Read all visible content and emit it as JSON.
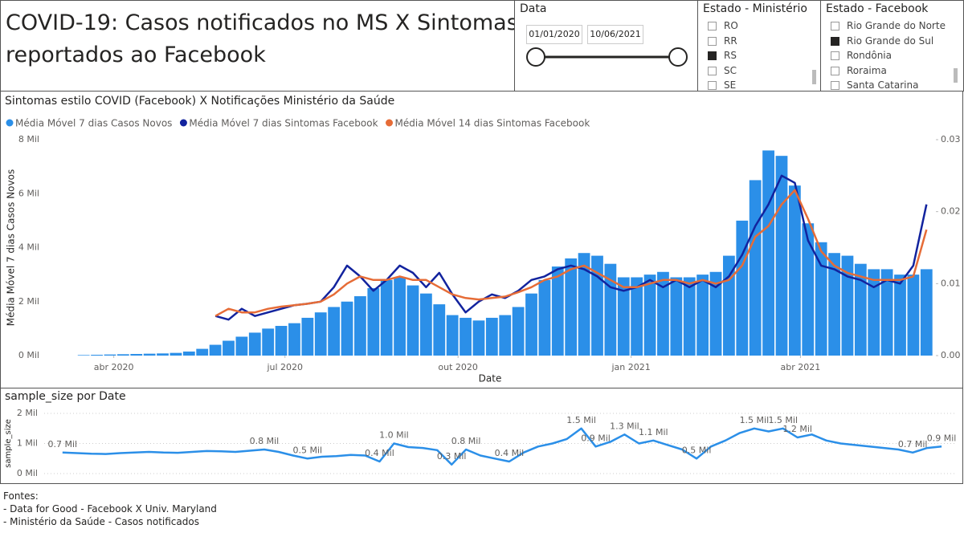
{
  "header": {
    "title_lines": [
      "COVID-19: Casos notificados no MS X Sintomas",
      "reportados ao Facebook"
    ]
  },
  "date_slicer": {
    "title": "Data",
    "start": "01/01/2020",
    "end": "10/06/2021"
  },
  "state_slicers": [
    {
      "title": "Estado - Ministério",
      "items": [
        {
          "label": "RO",
          "selected": false
        },
        {
          "label": "RR",
          "selected": false
        },
        {
          "label": "RS",
          "selected": true
        },
        {
          "label": "SC",
          "selected": false
        },
        {
          "label": "SE",
          "selected": false
        }
      ]
    },
    {
      "title": "Estado - Facebook",
      "items": [
        {
          "label": "Rio Grande do Norte",
          "selected": false
        },
        {
          "label": "Rio Grande do Sul",
          "selected": true
        },
        {
          "label": "Rondônia",
          "selected": false
        },
        {
          "label": "Roraima",
          "selected": false
        },
        {
          "label": "Santa Catarina",
          "selected": false
        }
      ]
    }
  ],
  "chart_data": [
    {
      "type": "combo",
      "title": "Sintomas estilo COVID (Facebook) X Notificações Ministério da Saúde",
      "x_label": "Date",
      "y_label": "Média Móvel 7 dias Casos Novos",
      "x": [
        "2020-03-16",
        "2020-03-23",
        "2020-03-30",
        "2020-04-06",
        "2020-04-13",
        "2020-04-20",
        "2020-04-27",
        "2020-05-04",
        "2020-05-11",
        "2020-05-18",
        "2020-05-25",
        "2020-06-01",
        "2020-06-08",
        "2020-06-15",
        "2020-06-22",
        "2020-06-29",
        "2020-07-06",
        "2020-07-13",
        "2020-07-20",
        "2020-07-27",
        "2020-08-03",
        "2020-08-10",
        "2020-08-17",
        "2020-08-24",
        "2020-08-31",
        "2020-09-07",
        "2020-09-14",
        "2020-09-21",
        "2020-09-28",
        "2020-10-05",
        "2020-10-12",
        "2020-10-19",
        "2020-10-26",
        "2020-11-02",
        "2020-11-09",
        "2020-11-16",
        "2020-11-23",
        "2020-11-30",
        "2020-12-07",
        "2020-12-14",
        "2020-12-21",
        "2020-12-28",
        "2021-01-04",
        "2021-01-11",
        "2021-01-18",
        "2021-01-25",
        "2021-02-01",
        "2021-02-08",
        "2021-02-15",
        "2021-02-22",
        "2021-03-01",
        "2021-03-08",
        "2021-03-15",
        "2021-03-22",
        "2021-03-29",
        "2021-04-05",
        "2021-04-12",
        "2021-04-19",
        "2021-04-26",
        "2021-05-03",
        "2021-05-10",
        "2021-05-17",
        "2021-05-24",
        "2021-05-31",
        "2021-06-07"
      ],
      "xlim": [
        "2020-02-24",
        "2021-06-12"
      ],
      "xticks": [
        {
          "value": "2020-04-01",
          "label": "abr 2020"
        },
        {
          "value": "2020-07-01",
          "label": "jul 2020"
        },
        {
          "value": "2020-10-01",
          "label": "out 2020"
        },
        {
          "value": "2021-01-01",
          "label": "jan 2021"
        },
        {
          "value": "2021-04-01",
          "label": "abr 2021"
        }
      ],
      "ylim": [
        0,
        8000
      ],
      "yticks": [
        {
          "value": 0,
          "label": "0 Mil"
        },
        {
          "value": 2000,
          "label": "2 Mil"
        },
        {
          "value": 4000,
          "label": "4 Mil"
        },
        {
          "value": 6000,
          "label": "6 Mil"
        },
        {
          "value": 8000,
          "label": "8 Mil"
        }
      ],
      "y2lim": [
        0,
        0.03
      ],
      "y2ticks": [
        {
          "value": 0,
          "label": "0.00"
        },
        0.01,
        0.02,
        0.03
      ],
      "grid": false,
      "series": [
        {
          "name": "Média Móvel 7 dias Casos Novos",
          "type": "bar",
          "color": "#2b8fe8",
          "values": [
            20,
            30,
            40,
            50,
            60,
            70,
            80,
            100,
            150,
            250,
            400,
            550,
            700,
            850,
            1000,
            1100,
            1200,
            1400,
            1600,
            1800,
            2000,
            2200,
            2500,
            2800,
            2900,
            2600,
            2300,
            1900,
            1500,
            1400,
            1300,
            1400,
            1500,
            1800,
            2300,
            2800,
            3300,
            3600,
            3800,
            3700,
            3400,
            2900,
            2900,
            3000,
            3100,
            2900,
            2900,
            3000,
            3100,
            3700,
            5000,
            6500,
            7600,
            7400,
            6300,
            4900,
            4200,
            3800,
            3700,
            3400,
            3200,
            3200,
            3000,
            3000,
            3200
          ]
        },
        {
          "name": "Média Móvel 7 dias Sintomas Facebook",
          "type": "line",
          "axis": "y2",
          "color": "#12239e",
          "values": [
            null,
            null,
            null,
            null,
            null,
            null,
            null,
            null,
            null,
            null,
            0.0055,
            0.005,
            0.0065,
            0.0055,
            0.006,
            0.0065,
            0.007,
            0.0072,
            0.0075,
            0.0095,
            0.0125,
            0.011,
            0.009,
            0.0105,
            0.0125,
            0.0115,
            0.0095,
            0.0115,
            0.0085,
            0.006,
            0.0075,
            0.0085,
            0.008,
            0.009,
            0.0105,
            0.011,
            0.012,
            0.0125,
            0.012,
            0.011,
            0.0095,
            0.009,
            0.0095,
            0.0105,
            0.0095,
            0.0105,
            0.0095,
            0.0105,
            0.0095,
            0.011,
            0.014,
            0.018,
            0.021,
            0.025,
            0.024,
            0.016,
            0.0125,
            0.012,
            0.011,
            0.0105,
            0.0095,
            0.0105,
            0.01,
            0.0125,
            0.021
          ]
        },
        {
          "name": "Média Móvel 14 dias Sintomas Facebook",
          "type": "line",
          "axis": "y2",
          "color": "#e66c37",
          "values": [
            null,
            null,
            null,
            null,
            null,
            null,
            null,
            null,
            null,
            null,
            0.0055,
            0.0065,
            0.006,
            0.006,
            0.0065,
            0.0068,
            0.007,
            0.0072,
            0.0075,
            0.0085,
            0.01,
            0.011,
            0.0105,
            0.0105,
            0.011,
            0.0105,
            0.0105,
            0.0095,
            0.0085,
            0.008,
            0.0078,
            0.008,
            0.0082,
            0.0088,
            0.0095,
            0.0105,
            0.011,
            0.012,
            0.0125,
            0.0115,
            0.0105,
            0.0095,
            0.0095,
            0.01,
            0.0105,
            0.0105,
            0.01,
            0.0105,
            0.01,
            0.0105,
            0.0125,
            0.0165,
            0.018,
            0.021,
            0.023,
            0.019,
            0.0145,
            0.0125,
            0.0115,
            0.011,
            0.0105,
            0.0105,
            0.0105,
            0.011,
            0.0175
          ]
        }
      ]
    },
    {
      "type": "line",
      "title": "sample_size por Date",
      "y_label": "sample_size",
      "x": [
        "2020-04-06",
        "2020-04-13",
        "2020-04-20",
        "2020-04-27",
        "2020-05-04",
        "2020-05-11",
        "2020-05-18",
        "2020-05-25",
        "2020-06-01",
        "2020-06-08",
        "2020-06-15",
        "2020-06-22",
        "2020-06-29",
        "2020-07-06",
        "2020-07-13",
        "2020-07-20",
        "2020-07-27",
        "2020-08-03",
        "2020-08-10",
        "2020-08-17",
        "2020-08-24",
        "2020-08-31",
        "2020-09-07",
        "2020-09-14",
        "2020-09-21",
        "2020-09-28",
        "2020-10-05",
        "2020-10-12",
        "2020-10-19",
        "2020-10-26",
        "2020-11-02",
        "2020-11-09",
        "2020-11-16",
        "2020-11-23",
        "2020-11-30",
        "2020-12-07",
        "2020-12-14",
        "2020-12-21",
        "2020-12-28",
        "2021-01-04",
        "2021-01-11",
        "2021-01-18",
        "2021-01-25",
        "2021-02-01",
        "2021-02-08",
        "2021-02-15",
        "2021-02-22",
        "2021-03-01",
        "2021-03-08",
        "2021-03-15",
        "2021-03-22",
        "2021-03-29",
        "2021-04-05",
        "2021-04-12",
        "2021-04-19",
        "2021-04-26",
        "2021-05-03",
        "2021-05-10",
        "2021-05-17",
        "2021-05-24",
        "2021-05-31",
        "2021-06-07"
      ],
      "xlim": [
        "2020-04-01",
        "2021-06-14"
      ],
      "ylim": [
        0,
        2000
      ],
      "yticks": [
        {
          "value": 0,
          "label": "0 Mil"
        },
        {
          "value": 1000,
          "label": "1 Mil"
        },
        {
          "value": 2000,
          "label": "2 Mil"
        }
      ],
      "grid": true,
      "series": [
        {
          "name": "sample_size",
          "color": "#2b8fe8",
          "values": [
            700,
            680,
            660,
            650,
            680,
            700,
            720,
            700,
            690,
            720,
            750,
            740,
            720,
            760,
            800,
            720,
            600,
            500,
            560,
            580,
            620,
            600,
            400,
            1000,
            880,
            850,
            780,
            300,
            800,
            600,
            500,
            400,
            700,
            900,
            1000,
            1150,
            1500,
            900,
            1050,
            1300,
            1000,
            1100,
            950,
            800,
            500,
            900,
            1100,
            1350,
            1500,
            1400,
            1500,
            1200,
            1300,
            1100,
            1000,
            950,
            900,
            850,
            800,
            700,
            850,
            900
          ],
          "value_labels": [
            "0.7 Mil",
            null,
            null,
            null,
            null,
            null,
            null,
            null,
            null,
            null,
            null,
            null,
            null,
            null,
            "0.8 Mil",
            null,
            null,
            "0.5 Mil",
            null,
            null,
            null,
            null,
            "0.4 Mil",
            "1.0 Mil",
            null,
            null,
            null,
            "0.3 Mil",
            "0.8 Mil",
            null,
            null,
            "0.4 Mil",
            null,
            null,
            null,
            null,
            "1.5 Mil",
            "0.9 Mil",
            null,
            "1.3 Mil",
            null,
            "1.1 Mil",
            null,
            null,
            "0.5 Mil",
            null,
            null,
            null,
            "1.5 Mil",
            null,
            "1.5 Mil",
            "1.2 Mil",
            null,
            null,
            null,
            null,
            null,
            null,
            null,
            "0.7 Mil",
            null,
            "0.9 Mil"
          ]
        }
      ]
    }
  ],
  "sources": [
    "Fontes:",
    "- Data for Good - Facebook X Univ. Maryland",
    "- Ministério da Saúde - Casos notificados"
  ]
}
